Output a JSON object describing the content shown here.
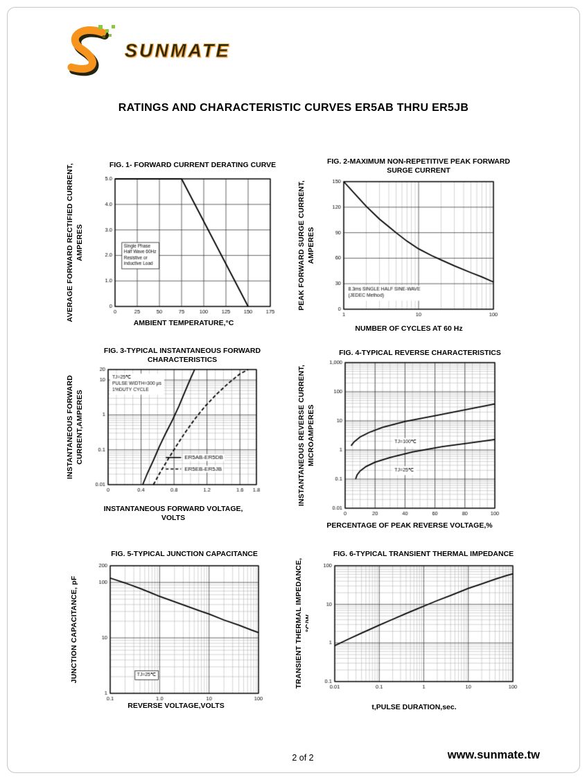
{
  "page": {
    "brand": "SUNMATE",
    "title": "RATINGS AND CHARACTERISTIC CURVES ER5AB THRU ER5JB",
    "page_number": "2 of 2",
    "website": "www.sunmate.tw",
    "accent_color": "#F7941D",
    "pixel_color": "#8DC63F"
  },
  "chart_data": [
    {
      "id": "fig1",
      "type": "line",
      "title": "FIG. 1- FORWARD CURRENT DERATING CURVE",
      "ylabel": "AVERAGE FORWARD RECTIFIED CURRENT,\nAMPERES",
      "xlabel": "AMBIENT TEMPERATURE,°C",
      "xscale": "linear",
      "yscale": "linear",
      "xlim": [
        0,
        175
      ],
      "ylim": [
        0,
        5
      ],
      "xticks": [
        0,
        25,
        50,
        75,
        100,
        125,
        150,
        175
      ],
      "xtick_labels": [
        "0",
        "25",
        "50",
        "75",
        "100",
        "125",
        "150",
        "175"
      ],
      "yticks": [
        0,
        1,
        2,
        3,
        4,
        5
      ],
      "ytick_labels": [
        "0",
        "1.0",
        "2.0",
        "3.0",
        "4.0",
        "5.0"
      ],
      "xminor": null,
      "yminor": null,
      "series": [
        {
          "name": "forward-current-derating",
          "style": "solid",
          "x": [
            0,
            75,
            150
          ],
          "y": [
            5,
            5,
            0
          ]
        }
      ],
      "annotations": [
        {
          "text": "Single Phase\nHalf Wave 60Hz\nResistive or\ninductive Load",
          "x": 10,
          "y": 2.45,
          "box": true,
          "size": 6.5
        }
      ]
    },
    {
      "id": "fig2",
      "type": "line",
      "title": "FIG. 2-MAXIMUM NON-REPETITIVE PEAK FORWARD\nSURGE CURRENT",
      "ylabel": "PEAK FORWARD SURGE CURRENT,\nAMPERES",
      "xlabel": "NUMBER OF CYCLES AT 60 Hz",
      "xscale": "log",
      "yscale": "linear",
      "xlim": [
        1,
        100
      ],
      "ylim": [
        0,
        150
      ],
      "xticks": [
        1,
        10,
        100
      ],
      "xtick_labels": [
        "1",
        "10",
        "100"
      ],
      "yticks": [
        0,
        30,
        60,
        90,
        120,
        150
      ],
      "ytick_labels": [
        "0",
        "30",
        "60",
        "90",
        "120",
        "150"
      ],
      "xminor": null,
      "yminor": null,
      "series": [
        {
          "name": "peak-surge-current",
          "style": "solid",
          "x": [
            1,
            1.5,
            2,
            3,
            4,
            5,
            7,
            10,
            15,
            20,
            30,
            50,
            70,
            100
          ],
          "y": [
            150,
            133,
            121,
            106,
            97,
            90,
            80,
            71,
            63,
            58,
            51,
            43,
            38,
            32
          ]
        }
      ],
      "annotations": [
        {
          "text": "8.3ms SINGLE HALF SINE-WAVE\n(JEDEC Method)",
          "x": 1.15,
          "y": 26,
          "size": 6.8
        }
      ]
    },
    {
      "id": "fig3",
      "type": "line",
      "title": "FIG. 3-TYPICAL INSTANTANEOUS FORWARD\nCHARACTERISTICS",
      "ylabel": "INSTANTANEOUS FORWARD\nCURRENT,AMPERES",
      "xlabel": "INSTANTANEOUS FORWARD VOLTAGE,\nVOLTS",
      "xscale": "linear",
      "yscale": "log",
      "xlim": [
        0,
        1.8
      ],
      "ylim": [
        0.01,
        20
      ],
      "xticks": [
        0,
        0.4,
        0.8,
        1.2,
        1.6,
        1.8
      ],
      "xtick_labels": [
        "0",
        "0.4",
        "0.8",
        "1.2",
        "1.6",
        "1.8"
      ],
      "yticks": [
        0.01,
        0.1,
        1,
        10,
        20
      ],
      "ytick_labels": [
        "0.01",
        "0.1",
        "1",
        "10",
        "20"
      ],
      "xminor": 0.1,
      "yminor": null,
      "series": [
        {
          "name": "ER5AB-ER5DB",
          "style": "solid",
          "x": [
            0.42,
            0.48,
            0.55,
            0.62,
            0.7,
            0.78,
            0.86,
            0.93,
            1.0,
            1.05
          ],
          "y": [
            0.01,
            0.022,
            0.05,
            0.12,
            0.3,
            0.7,
            1.8,
            4.5,
            11,
            20
          ]
        },
        {
          "name": "ER5EB-ER5JB",
          "style": "dashed",
          "x": [
            0.55,
            0.63,
            0.72,
            0.82,
            0.93,
            1.05,
            1.18,
            1.32,
            1.47,
            1.6,
            1.7
          ],
          "y": [
            0.01,
            0.022,
            0.05,
            0.12,
            0.3,
            0.75,
            1.8,
            4,
            8.5,
            15,
            20
          ]
        }
      ],
      "annotations": [
        {
          "text": "TJ=25℃\nPULSE WIDTH=300 μs\n1%DUTY CYCLE",
          "x": 0.05,
          "y": 14,
          "size": 6.8
        }
      ],
      "legend": {
        "x": 0.7,
        "entries": [
          {
            "label": "ER5AB-ER5DB",
            "style": "solid",
            "y": 0.06
          },
          {
            "label": "ER5EB-ER5JB",
            "style": "dashed",
            "y": 0.028
          }
        ]
      }
    },
    {
      "id": "fig4",
      "type": "line",
      "title": "FIG. 4-TYPICAL REVERSE CHARACTERISTICS",
      "ylabel": "INSTANTANEOUS REVERSE CURRENT,\nMICROAMPERES",
      "xlabel": "PERCENTAGE OF PEAK REVERSE VOLTAGE,%",
      "xscale": "linear",
      "yscale": "log",
      "xlim": [
        0,
        100
      ],
      "ylim": [
        0.01,
        1000
      ],
      "xticks": [
        0,
        20,
        40,
        60,
        80,
        100
      ],
      "xtick_labels": [
        "0",
        "20",
        "40",
        "60",
        "80",
        "100"
      ],
      "yticks": [
        0.01,
        0.1,
        1,
        10,
        100,
        1000
      ],
      "ytick_labels": [
        "0.01",
        "0.1",
        "1",
        "10",
        "100",
        "1,000"
      ],
      "xminor": 5,
      "yminor": null,
      "series": [
        {
          "name": "TJ=100C",
          "style": "solid",
          "x": [
            4,
            6,
            10,
            16,
            25,
            40,
            60,
            80,
            100
          ],
          "y": [
            1.4,
            1.9,
            2.8,
            4,
            6,
            9.5,
            15,
            24,
            38
          ]
        },
        {
          "name": "TJ=25C",
          "style": "solid",
          "x": [
            7,
            8,
            10,
            14,
            20,
            30,
            45,
            65,
            85,
            100
          ],
          "y": [
            0.1,
            0.14,
            0.19,
            0.27,
            0.38,
            0.55,
            0.85,
            1.3,
            1.8,
            2.3
          ]
        }
      ],
      "annotations": [
        {
          "text": "TJ=100℃",
          "x": 33,
          "y": 2.3,
          "size": 7
        },
        {
          "text": "TJ=25℃",
          "x": 33,
          "y": 0.25,
          "size": 7
        }
      ]
    },
    {
      "id": "fig5",
      "type": "line",
      "title": "FIG. 5-TYPICAL JUNCTION CAPACITANCE",
      "ylabel": "JUNCTION CAPACITANCE, pF",
      "xlabel": "REVERSE VOLTAGE,VOLTS",
      "xscale": "log",
      "yscale": "log",
      "xlim": [
        0.1,
        100
      ],
      "ylim": [
        1,
        200
      ],
      "xticks": [
        0.1,
        1,
        10,
        100
      ],
      "xtick_labels": [
        "0.1",
        "1.0",
        "10",
        "100"
      ],
      "yticks": [
        1,
        10,
        100,
        200
      ],
      "ytick_labels": [
        "1",
        "10",
        "100",
        "200"
      ],
      "xminor": null,
      "yminor": null,
      "series": [
        {
          "name": "junction-capacitance",
          "style": "solid",
          "x": [
            0.1,
            0.2,
            0.4,
            0.7,
            1,
            2,
            4,
            7,
            10,
            20,
            40,
            70,
            100
          ],
          "y": [
            120,
            98,
            78,
            64,
            56,
            45,
            36,
            30,
            27,
            21,
            17,
            14,
            12.5
          ]
        }
      ],
      "annotations": [
        {
          "text": "TJ=25℃",
          "x": 0.35,
          "y": 2.4,
          "box": true,
          "size": 6.8
        }
      ]
    },
    {
      "id": "fig6",
      "type": "line",
      "title": "FIG. 6-TYPICAL TRANSIENT THERMAL IMPEDANCE",
      "ylabel": "TRANSIENT THERMAL IMPEDANCE,\n°C/W",
      "xlabel": "t,PULSE DURATION,sec.",
      "xscale": "log",
      "yscale": "log",
      "xlim": [
        0.01,
        100
      ],
      "ylim": [
        0.1,
        100
      ],
      "xticks": [
        0.01,
        0.1,
        1,
        10,
        100
      ],
      "xtick_labels": [
        "0.01",
        "0.1",
        "1",
        "10",
        "100"
      ],
      "yticks": [
        0.1,
        1,
        10,
        100
      ],
      "ytick_labels": [
        "0.1",
        "1",
        "10",
        "100"
      ],
      "xminor": null,
      "yminor": null,
      "series": [
        {
          "name": "transient-thermal-impedance",
          "style": "solid",
          "x": [
            0.01,
            0.02,
            0.04,
            0.07,
            0.1,
            0.2,
            0.4,
            0.7,
            1,
            2,
            4,
            7,
            10,
            20,
            40,
            70,
            100
          ],
          "y": [
            0.85,
            1.25,
            1.8,
            2.4,
            2.9,
            4.1,
            5.8,
            7.6,
            9,
            12.5,
            17,
            22,
            26,
            34,
            45,
            55,
            62
          ]
        }
      ],
      "annotations": []
    }
  ]
}
